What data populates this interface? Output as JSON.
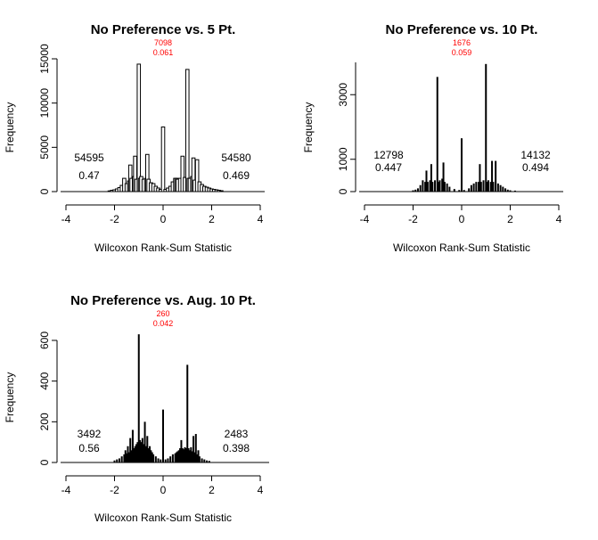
{
  "colors": {
    "bar": "#000000",
    "center_annotation": "#ff0000",
    "background": "#ffffff"
  },
  "chart_data": [
    {
      "type": "bar",
      "title": "No Preference vs. 5 Pt.",
      "xlabel": "Wilcoxon Rank-Sum Statistic",
      "ylabel": "Frequency",
      "xlim": [
        -4,
        4
      ],
      "ylim": [
        0,
        15000
      ],
      "x_ticks": [
        "-4",
        "-2",
        "0",
        "2",
        "4"
      ],
      "y_ticks": [
        "0",
        "5000",
        "10000",
        "15000"
      ],
      "bar_style": "outline",
      "left_annotation": {
        "count": "54595",
        "proportion": "0.47"
      },
      "center_annotation": {
        "count": "7098",
        "proportion": "0.061"
      },
      "right_annotation": {
        "count": "54580",
        "proportion": "0.469"
      },
      "bars": [
        {
          "x": -2.2,
          "y": 80
        },
        {
          "x": -2.1,
          "y": 150
        },
        {
          "x": -2.0,
          "y": 200
        },
        {
          "x": -1.9,
          "y": 300
        },
        {
          "x": -1.8,
          "y": 450
        },
        {
          "x": -1.7,
          "y": 700
        },
        {
          "x": -1.6,
          "y": 1500
        },
        {
          "x": -1.5,
          "y": 900
        },
        {
          "x": -1.4,
          "y": 1200
        },
        {
          "x": -1.35,
          "y": 3000
        },
        {
          "x": -1.3,
          "y": 1500
        },
        {
          "x": -1.2,
          "y": 1700
        },
        {
          "x": -1.15,
          "y": 4000
        },
        {
          "x": -1.1,
          "y": 1400
        },
        {
          "x": -1.0,
          "y": 14400
        },
        {
          "x": -0.95,
          "y": 1500
        },
        {
          "x": -0.9,
          "y": 1700
        },
        {
          "x": -0.8,
          "y": 1400
        },
        {
          "x": -0.7,
          "y": 1500
        },
        {
          "x": -0.65,
          "y": 4200
        },
        {
          "x": -0.6,
          "y": 1400
        },
        {
          "x": -0.5,
          "y": 1000
        },
        {
          "x": -0.4,
          "y": 900
        },
        {
          "x": -0.3,
          "y": 600
        },
        {
          "x": -0.2,
          "y": 400
        },
        {
          "x": -0.1,
          "y": 250
        },
        {
          "x": 0.0,
          "y": 7300
        },
        {
          "x": 0.1,
          "y": 250
        },
        {
          "x": 0.2,
          "y": 400
        },
        {
          "x": 0.3,
          "y": 600
        },
        {
          "x": 0.4,
          "y": 1100
        },
        {
          "x": 0.5,
          "y": 1500
        },
        {
          "x": 0.55,
          "y": 1500
        },
        {
          "x": 0.6,
          "y": 1400
        },
        {
          "x": 0.7,
          "y": 1500
        },
        {
          "x": 0.8,
          "y": 4000
        },
        {
          "x": 0.9,
          "y": 1600
        },
        {
          "x": 1.0,
          "y": 13800
        },
        {
          "x": 1.05,
          "y": 1500
        },
        {
          "x": 1.1,
          "y": 1500
        },
        {
          "x": 1.2,
          "y": 1700
        },
        {
          "x": 1.25,
          "y": 3800
        },
        {
          "x": 1.3,
          "y": 1300
        },
        {
          "x": 1.4,
          "y": 3600
        },
        {
          "x": 1.5,
          "y": 1100
        },
        {
          "x": 1.6,
          "y": 800
        },
        {
          "x": 1.7,
          "y": 600
        },
        {
          "x": 1.8,
          "y": 500
        },
        {
          "x": 1.9,
          "y": 400
        },
        {
          "x": 2.0,
          "y": 300
        },
        {
          "x": 2.1,
          "y": 250
        },
        {
          "x": 2.2,
          "y": 200
        },
        {
          "x": 2.3,
          "y": 150
        },
        {
          "x": 2.4,
          "y": 100
        }
      ]
    },
    {
      "type": "bar",
      "title": "No Preference vs. 10 Pt.",
      "xlabel": "Wilcoxon Rank-Sum Statistic",
      "ylabel": "Frequency",
      "xlim": [
        -4,
        4
      ],
      "ylim": [
        0,
        4000
      ],
      "x_ticks": [
        "-4",
        "-2",
        "0",
        "2",
        "4"
      ],
      "y_ticks": [
        "0",
        "1000",
        "3000"
      ],
      "y_tick_values": [
        0,
        1000,
        3000
      ],
      "bar_style": "filled",
      "left_annotation": {
        "count": "12798",
        "proportion": "0.447"
      },
      "center_annotation": {
        "count": "1676",
        "proportion": "0.059"
      },
      "right_annotation": {
        "count": "14132",
        "proportion": "0.494"
      },
      "bars": [
        {
          "x": -2.0,
          "y": 40
        },
        {
          "x": -1.9,
          "y": 60
        },
        {
          "x": -1.8,
          "y": 100
        },
        {
          "x": -1.7,
          "y": 200
        },
        {
          "x": -1.6,
          "y": 350
        },
        {
          "x": -1.5,
          "y": 300
        },
        {
          "x": -1.45,
          "y": 650
        },
        {
          "x": -1.4,
          "y": 300
        },
        {
          "x": -1.3,
          "y": 350
        },
        {
          "x": -1.25,
          "y": 850
        },
        {
          "x": -1.2,
          "y": 300
        },
        {
          "x": -1.1,
          "y": 350
        },
        {
          "x": -1.0,
          "y": 3550
        },
        {
          "x": -0.95,
          "y": 300
        },
        {
          "x": -0.9,
          "y": 350
        },
        {
          "x": -0.8,
          "y": 400
        },
        {
          "x": -0.75,
          "y": 900
        },
        {
          "x": -0.7,
          "y": 300
        },
        {
          "x": -0.6,
          "y": 250
        },
        {
          "x": -0.5,
          "y": 150
        },
        {
          "x": -0.3,
          "y": 80
        },
        {
          "x": -0.1,
          "y": 50
        },
        {
          "x": 0.0,
          "y": 1650
        },
        {
          "x": 0.1,
          "y": 50
        },
        {
          "x": 0.3,
          "y": 100
        },
        {
          "x": 0.4,
          "y": 200
        },
        {
          "x": 0.5,
          "y": 250
        },
        {
          "x": 0.6,
          "y": 300
        },
        {
          "x": 0.7,
          "y": 300
        },
        {
          "x": 0.75,
          "y": 850
        },
        {
          "x": 0.8,
          "y": 300
        },
        {
          "x": 0.9,
          "y": 350
        },
        {
          "x": 1.0,
          "y": 3950
        },
        {
          "x": 1.05,
          "y": 300
        },
        {
          "x": 1.1,
          "y": 350
        },
        {
          "x": 1.2,
          "y": 300
        },
        {
          "x": 1.25,
          "y": 950
        },
        {
          "x": 1.3,
          "y": 300
        },
        {
          "x": 1.4,
          "y": 950
        },
        {
          "x": 1.5,
          "y": 250
        },
        {
          "x": 1.6,
          "y": 200
        },
        {
          "x": 1.7,
          "y": 150
        },
        {
          "x": 1.8,
          "y": 100
        },
        {
          "x": 1.9,
          "y": 60
        },
        {
          "x": 2.0,
          "y": 40
        },
        {
          "x": 2.2,
          "y": 30
        }
      ]
    },
    {
      "type": "bar",
      "title": "No Preference vs. Aug. 10 Pt.",
      "xlabel": "Wilcoxon Rank-Sum Statistic",
      "ylabel": "Frequency",
      "xlim": [
        -4,
        4
      ],
      "ylim": [
        0,
        600
      ],
      "x_ticks": [
        "-4",
        "-2",
        "0",
        "2",
        "4"
      ],
      "y_ticks": [
        "0",
        "200",
        "400",
        "600"
      ],
      "bar_style": "filled",
      "left_annotation": {
        "count": "3492",
        "proportion": "0.56"
      },
      "center_annotation": {
        "count": "260",
        "proportion": "0.042"
      },
      "right_annotation": {
        "count": "2483",
        "proportion": "0.398"
      },
      "bars": [
        {
          "x": -2.0,
          "y": 10
        },
        {
          "x": -1.9,
          "y": 15
        },
        {
          "x": -1.8,
          "y": 20
        },
        {
          "x": -1.7,
          "y": 30
        },
        {
          "x": -1.6,
          "y": 40
        },
        {
          "x": -1.55,
          "y": 60
        },
        {
          "x": -1.5,
          "y": 45
        },
        {
          "x": -1.45,
          "y": 80
        },
        {
          "x": -1.4,
          "y": 50
        },
        {
          "x": -1.35,
          "y": 120
        },
        {
          "x": -1.3,
          "y": 60
        },
        {
          "x": -1.25,
          "y": 160
        },
        {
          "x": -1.2,
          "y": 70
        },
        {
          "x": -1.15,
          "y": 80
        },
        {
          "x": -1.1,
          "y": 90
        },
        {
          "x": -1.05,
          "y": 100
        },
        {
          "x": -1.0,
          "y": 630
        },
        {
          "x": -0.95,
          "y": 110
        },
        {
          "x": -0.9,
          "y": 100
        },
        {
          "x": -0.85,
          "y": 120
        },
        {
          "x": -0.8,
          "y": 90
        },
        {
          "x": -0.75,
          "y": 200
        },
        {
          "x": -0.7,
          "y": 80
        },
        {
          "x": -0.65,
          "y": 130
        },
        {
          "x": -0.6,
          "y": 70
        },
        {
          "x": -0.55,
          "y": 80
        },
        {
          "x": -0.5,
          "y": 60
        },
        {
          "x": -0.45,
          "y": 50
        },
        {
          "x": -0.4,
          "y": 40
        },
        {
          "x": -0.3,
          "y": 30
        },
        {
          "x": -0.2,
          "y": 20
        },
        {
          "x": -0.1,
          "y": 15
        },
        {
          "x": 0.0,
          "y": 260
        },
        {
          "x": 0.1,
          "y": 15
        },
        {
          "x": 0.2,
          "y": 20
        },
        {
          "x": 0.3,
          "y": 30
        },
        {
          "x": 0.4,
          "y": 40
        },
        {
          "x": 0.5,
          "y": 45
        },
        {
          "x": 0.55,
          "y": 50
        },
        {
          "x": 0.6,
          "y": 55
        },
        {
          "x": 0.65,
          "y": 60
        },
        {
          "x": 0.7,
          "y": 70
        },
        {
          "x": 0.75,
          "y": 110
        },
        {
          "x": 0.8,
          "y": 70
        },
        {
          "x": 0.85,
          "y": 65
        },
        {
          "x": 0.9,
          "y": 75
        },
        {
          "x": 0.95,
          "y": 70
        },
        {
          "x": 1.0,
          "y": 480
        },
        {
          "x": 1.05,
          "y": 70
        },
        {
          "x": 1.1,
          "y": 60
        },
        {
          "x": 1.15,
          "y": 75
        },
        {
          "x": 1.2,
          "y": 55
        },
        {
          "x": 1.25,
          "y": 130
        },
        {
          "x": 1.3,
          "y": 50
        },
        {
          "x": 1.35,
          "y": 140
        },
        {
          "x": 1.4,
          "y": 40
        },
        {
          "x": 1.45,
          "y": 60
        },
        {
          "x": 1.5,
          "y": 30
        },
        {
          "x": 1.6,
          "y": 20
        },
        {
          "x": 1.7,
          "y": 15
        },
        {
          "x": 1.8,
          "y": 10
        },
        {
          "x": 1.9,
          "y": 8
        }
      ]
    }
  ]
}
